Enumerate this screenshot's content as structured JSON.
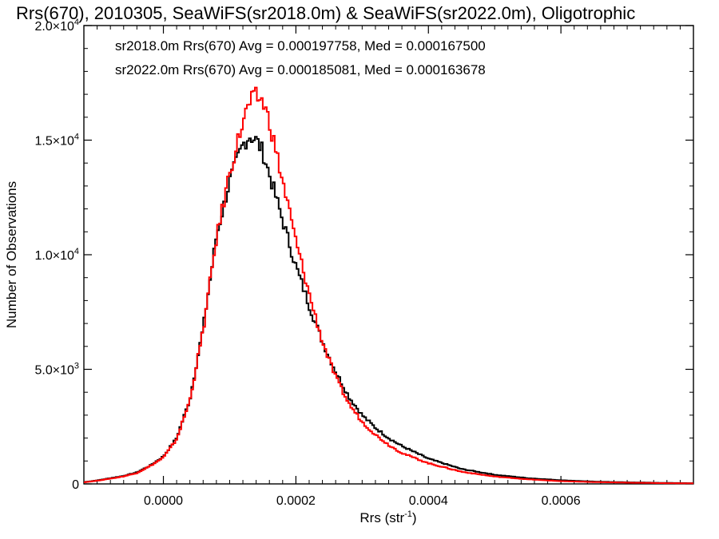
{
  "chart_data": {
    "type": "histogram",
    "title": "Rrs(670), 2010305, SeaWiFS(sr2018.0m) & SeaWiFS(sr2022.0m), Oligotrophic",
    "xlabel": "Rrs (str",
    "xlabel_sup": "-1",
    "xlabel_end": ")",
    "ylabel": "Number of Observations",
    "xlim": [
      -0.00012,
      0.0008
    ],
    "ylim": [
      0,
      20000
    ],
    "x_ticks": [
      {
        "value": 0.0,
        "label": "0.0000"
      },
      {
        "value": 0.0002,
        "label": "0.0002"
      },
      {
        "value": 0.0004,
        "label": "0.0004"
      },
      {
        "value": 0.0006,
        "label": "0.0006"
      }
    ],
    "y_ticks": [
      {
        "value": 0,
        "label": "0",
        "sup": ""
      },
      {
        "value": 5000,
        "label": "5.0×10",
        "sup": "3"
      },
      {
        "value": 10000,
        "label": "1.0×10",
        "sup": "4"
      },
      {
        "value": 15000,
        "label": "1.5×10",
        "sup": "4"
      },
      {
        "value": 20000,
        "label": "2.0×10",
        "sup": "4"
      }
    ],
    "series": [
      {
        "name": "sr2018.0m Rrs(670) Avg = 0.000197758, Med = 0.000167500",
        "color": "#000000",
        "x": [
          -0.00012,
          -0.0001,
          -8e-05,
          -6e-05,
          -4e-05,
          -2e-05,
          0.0,
          2e-05,
          4e-05,
          6e-05,
          8e-05,
          0.0001,
          0.00012,
          0.00013,
          0.00014,
          0.00015,
          0.00016,
          0.00018,
          0.0002,
          0.00022,
          0.00024,
          0.00026,
          0.00028,
          0.0003,
          0.00032,
          0.00034,
          0.00036,
          0.0004,
          0.00045,
          0.0005,
          0.00055,
          0.0006,
          0.00065,
          0.0007,
          0.00075,
          0.0008
        ],
        "y": [
          80,
          150,
          250,
          350,
          500,
          800,
          1200,
          2000,
          3700,
          6800,
          10800,
          13200,
          14800,
          15200,
          15000,
          14500,
          13500,
          11500,
          9500,
          7800,
          6200,
          4900,
          3800,
          3000,
          2450,
          2000,
          1650,
          1100,
          650,
          400,
          250,
          160,
          100,
          70,
          45,
          30
        ]
      },
      {
        "name": "sr2022.0m Rrs(670) Avg = 0.000185081, Med = 0.000163678",
        "color": "#ff0000",
        "x": [
          -0.00012,
          -0.0001,
          -8e-05,
          -6e-05,
          -4e-05,
          -2e-05,
          0.0,
          2e-05,
          4e-05,
          6e-05,
          8e-05,
          0.0001,
          0.00012,
          0.00013,
          0.00014,
          0.00015,
          0.00016,
          0.00018,
          0.0002,
          0.00022,
          0.00024,
          0.00026,
          0.00028,
          0.0003,
          0.00032,
          0.00034,
          0.00036,
          0.0004,
          0.00045,
          0.0005,
          0.00055,
          0.0006,
          0.00065,
          0.0007,
          0.00075,
          0.0008
        ],
        "y": [
          70,
          140,
          230,
          330,
          480,
          780,
          1150,
          1950,
          3650,
          6700,
          10700,
          13600,
          15800,
          16600,
          16900,
          16700,
          15800,
          13200,
          10600,
          8300,
          6200,
          4650,
          3500,
          2700,
          2150,
          1700,
          1350,
          900,
          530,
          320,
          200,
          120,
          80,
          55,
          35,
          25
        ]
      }
    ],
    "legend_placement": "top-left",
    "grid": false
  }
}
